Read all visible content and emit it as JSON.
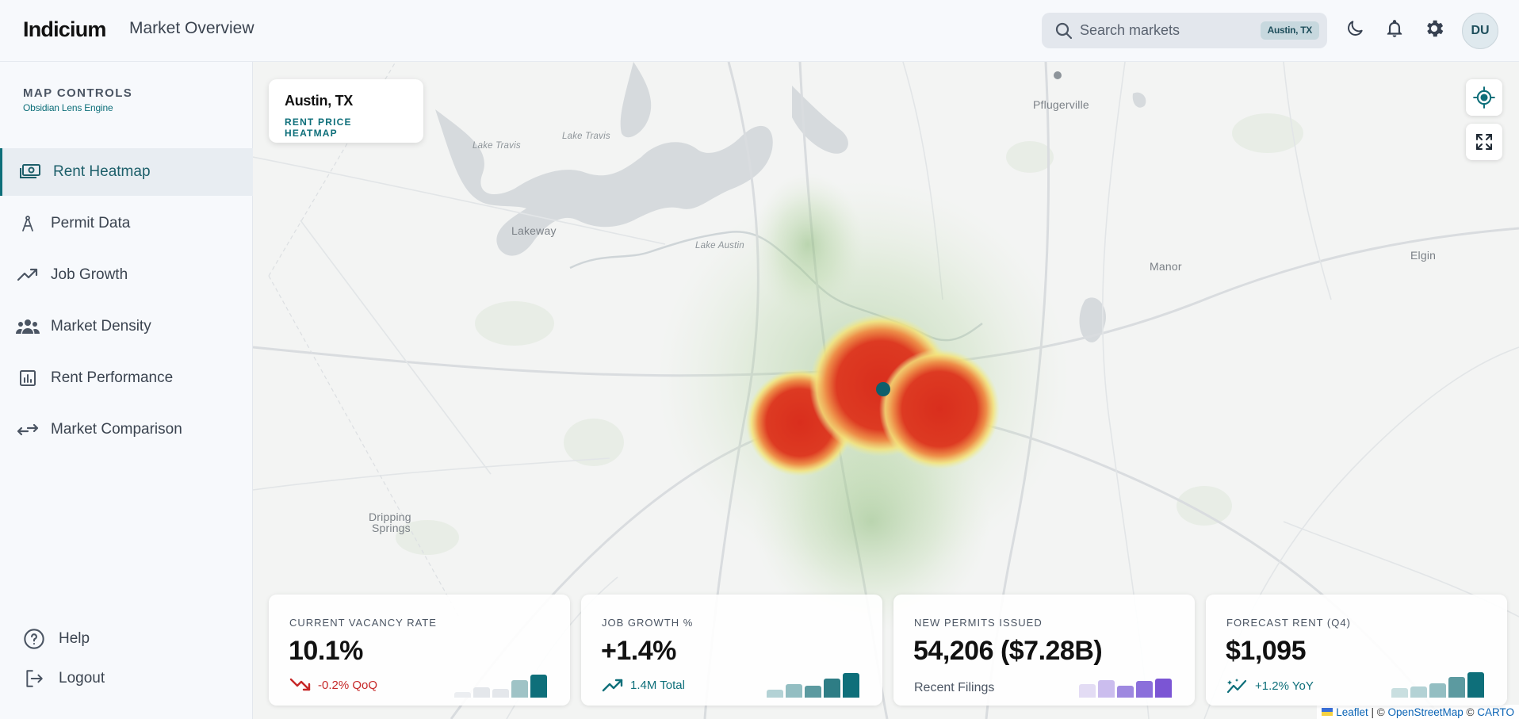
{
  "header": {
    "brand": "Indicium",
    "page_title": "Market Overview",
    "search_placeholder": "Search markets",
    "search_chip": "Austin, TX",
    "avatar_initials": "DU"
  },
  "sidebar": {
    "title": "MAP CONTROLS",
    "subtitle": "Obsidian Lens Engine",
    "items": [
      {
        "label": "Rent Heatmap",
        "icon": "money-icon",
        "active": true
      },
      {
        "label": "Permit Data",
        "icon": "compass-icon",
        "active": false
      },
      {
        "label": "Job Growth",
        "icon": "trending-up-icon",
        "active": false
      },
      {
        "label": "Market Density",
        "icon": "groups-icon",
        "active": false
      },
      {
        "label": "Rent Performance",
        "icon": "bar-chart-icon",
        "active": false
      },
      {
        "label": "Market Comparison",
        "icon": "compare-arrows-icon",
        "active": false
      }
    ],
    "footer": {
      "help": "Help",
      "logout": "Logout"
    }
  },
  "map": {
    "city": "Austin, TX",
    "layer": "RENT PRICE HEATMAP",
    "places": {
      "pflugerville": "Pflugerville",
      "lake_travis": "Lake Travis",
      "lake_travis_2": "Lake Travis",
      "lakeway": "Lakeway",
      "lake_austin": "Lake Austin",
      "manor": "Manor",
      "elgin": "Elgin",
      "dripping_springs_1": "Dripping",
      "dripping_springs_2": "Springs"
    },
    "attribution": {
      "leaflet": "Leaflet",
      "sep1": " | © ",
      "osm": "OpenStreetMap",
      "sep2": " © ",
      "carto": "CARTO"
    }
  },
  "metrics": [
    {
      "label": "CURRENT VACANCY RATE",
      "value": "10.1%",
      "trend": "-0.2% QoQ",
      "trend_color": "#c62828",
      "bars": [
        0.15,
        0.3,
        0.25,
        0.5,
        0.65
      ],
      "bar_colors": [
        "#eceef1",
        "#e4e7eb",
        "#e4e7eb",
        "#9fc3c6",
        "#0e6f7a"
      ]
    },
    {
      "label": "JOB GROWTH %",
      "value": "+1.4%",
      "trend": "1.4M Total",
      "trend_color": "#0e6f7a",
      "bars": [
        0.22,
        0.38,
        0.35,
        0.55,
        0.7
      ],
      "bar_colors": [
        "#b3d2d5",
        "#93bec2",
        "#5c9aa0",
        "#2e7d85",
        "#0e6f7a"
      ]
    },
    {
      "label": "NEW PERMITS ISSUED",
      "value": "54,206 ($7.28B)",
      "sub": "Recent Filings",
      "bars": [
        0.38,
        0.5,
        0.35,
        0.48,
        0.55
      ],
      "bar_colors": [
        "#e3dcf4",
        "#cbbdee",
        "#9e88e0",
        "#8b6fdb",
        "#7b55d4"
      ]
    },
    {
      "label": "FORECAST RENT (Q4)",
      "value": "$1,095",
      "trend": "+1.2% YoY",
      "trend_color": "#0e6f7a",
      "bars": [
        0.28,
        0.32,
        0.42,
        0.58,
        0.72
      ],
      "bar_colors": [
        "#c9dfe0",
        "#b3d2d5",
        "#93bec2",
        "#5c9aa0",
        "#0e6f7a"
      ]
    }
  ]
}
